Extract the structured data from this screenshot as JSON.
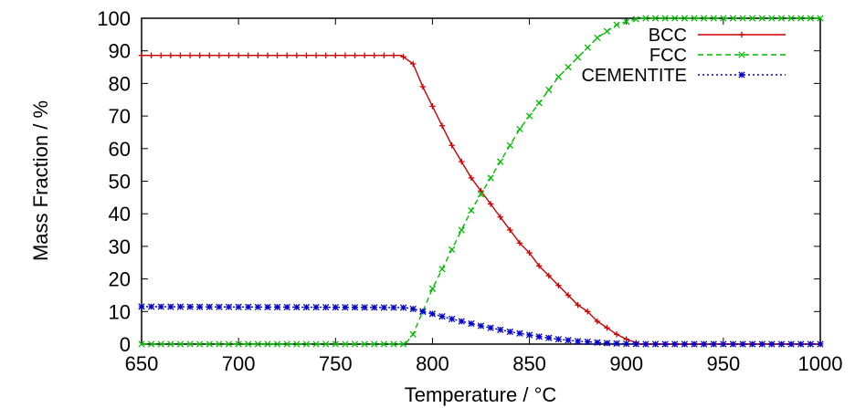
{
  "chart_data": {
    "type": "line",
    "xlabel": "Temperature / °C",
    "ylabel": "Mass Fraction / %",
    "xlim": [
      650,
      1000
    ],
    "ylim": [
      0,
      100
    ],
    "xticks": [
      650,
      700,
      750,
      800,
      850,
      900,
      950,
      1000
    ],
    "yticks": [
      0,
      10,
      20,
      30,
      40,
      50,
      60,
      70,
      80,
      90,
      100
    ],
    "grid": false,
    "legend_position": "top-right",
    "series": [
      {
        "name": "BCC",
        "color": "#cc0000",
        "marker": "plus",
        "dash": "solid",
        "points": [
          [
            650,
            88.6
          ],
          [
            700,
            88.6
          ],
          [
            750,
            88.6
          ],
          [
            784,
            88.6
          ],
          [
            790,
            86
          ],
          [
            795,
            79
          ],
          [
            800,
            73
          ],
          [
            805,
            67
          ],
          [
            810,
            61
          ],
          [
            815,
            56
          ],
          [
            820,
            51
          ],
          [
            825,
            47
          ],
          [
            830,
            43
          ],
          [
            835,
            39
          ],
          [
            840,
            35
          ],
          [
            845,
            31
          ],
          [
            850,
            28
          ],
          [
            855,
            24
          ],
          [
            860,
            21
          ],
          [
            865,
            18
          ],
          [
            870,
            15
          ],
          [
            875,
            12
          ],
          [
            880,
            10
          ],
          [
            885,
            7
          ],
          [
            890,
            5
          ],
          [
            895,
            3
          ],
          [
            900,
            1.5
          ],
          [
            907,
            0
          ],
          [
            950,
            0
          ],
          [
            1000,
            0
          ]
        ]
      },
      {
        "name": "FCC",
        "color": "#00bb00",
        "marker": "cross",
        "dash": "dashed",
        "points": [
          [
            650,
            0
          ],
          [
            700,
            0
          ],
          [
            750,
            0
          ],
          [
            786,
            0
          ],
          [
            790,
            3
          ],
          [
            795,
            10
          ],
          [
            800,
            17
          ],
          [
            805,
            23
          ],
          [
            810,
            29
          ],
          [
            815,
            35
          ],
          [
            820,
            41
          ],
          [
            825,
            46
          ],
          [
            830,
            51
          ],
          [
            835,
            56
          ],
          [
            840,
            61
          ],
          [
            845,
            66
          ],
          [
            850,
            70
          ],
          [
            855,
            74
          ],
          [
            860,
            78
          ],
          [
            865,
            82
          ],
          [
            870,
            85
          ],
          [
            875,
            88
          ],
          [
            880,
            91
          ],
          [
            885,
            94
          ],
          [
            890,
            96
          ],
          [
            895,
            98
          ],
          [
            900,
            99
          ],
          [
            907,
            100
          ],
          [
            950,
            100
          ],
          [
            1000,
            100
          ]
        ]
      },
      {
        "name": "CEMENTITE",
        "color": "#0000cc",
        "marker": "star",
        "dash": "dotted",
        "points": [
          [
            650,
            11.5
          ],
          [
            700,
            11.4
          ],
          [
            750,
            11.3
          ],
          [
            786,
            11.2
          ],
          [
            790,
            10.8
          ],
          [
            795,
            10
          ],
          [
            800,
            9.3
          ],
          [
            805,
            8.5
          ],
          [
            810,
            7.7
          ],
          [
            815,
            7
          ],
          [
            820,
            6.3
          ],
          [
            825,
            5.6
          ],
          [
            830,
            5
          ],
          [
            835,
            4.4
          ],
          [
            840,
            3.8
          ],
          [
            845,
            3.3
          ],
          [
            850,
            2.8
          ],
          [
            855,
            2.3
          ],
          [
            860,
            1.9
          ],
          [
            865,
            1.5
          ],
          [
            870,
            1.2
          ],
          [
            875,
            0.9
          ],
          [
            880,
            0.7
          ],
          [
            885,
            0.5
          ],
          [
            890,
            0.3
          ],
          [
            895,
            0.2
          ],
          [
            900,
            0.1
          ],
          [
            907,
            0
          ],
          [
            950,
            0
          ],
          [
            1000,
            0
          ]
        ]
      }
    ]
  }
}
